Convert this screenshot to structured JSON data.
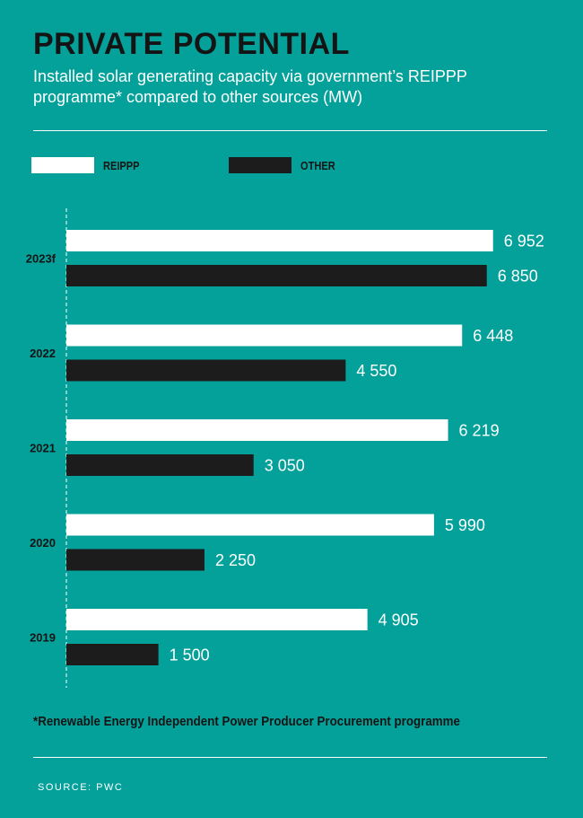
{
  "header": {
    "title": "PRIVATE POTENTIAL",
    "subtitle": "Installed solar generating capacity via government’s REIPPP programme* compared to other sources (MW)"
  },
  "footer": {
    "footnote": "*Renewable Energy Independent Power Producer Procurement programme",
    "source": "SOURCE: PWC"
  },
  "colors": {
    "background": "#04A19A",
    "reippp": "#FFFFFF",
    "other": "#1C1C1C"
  },
  "chart_data": {
    "type": "bar",
    "orientation": "horizontal",
    "categories": [
      "2023f",
      "2022",
      "2021",
      "2020",
      "2019"
    ],
    "series": [
      {
        "name": "REIPPP",
        "color": "#FFFFFF",
        "values": [
          6952,
          6448,
          6219,
          5990,
          4905
        ],
        "labels": [
          "6 952",
          "6 448",
          "6 219",
          "5 990",
          "4 905"
        ]
      },
      {
        "name": "OTHER",
        "color": "#1C1C1C",
        "values": [
          6850,
          4550,
          3050,
          2250,
          1500
        ],
        "labels": [
          "6 850",
          "4 550",
          "3 050",
          "2 250",
          "1 500"
        ]
      }
    ],
    "xlim": [
      0,
      7000
    ],
    "legend": "top-left",
    "grid": false
  }
}
